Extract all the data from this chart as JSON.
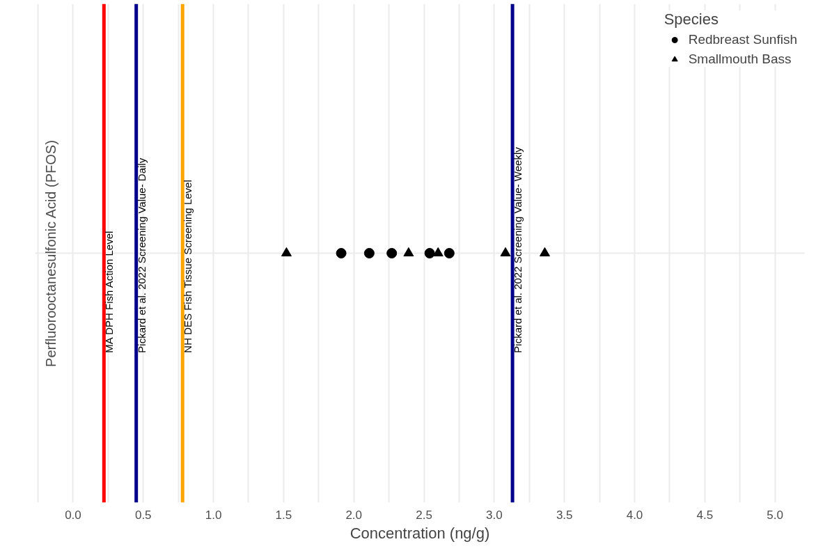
{
  "chart_data": {
    "type": "scatter",
    "orientation": "horizontal",
    "categories": [
      "Perfluorooctanesulfonic Acid (PFOS)"
    ],
    "xlabel": "Concentration (ng/g)",
    "legend_title": "Species",
    "legend": "top right",
    "grid": true,
    "xlim": [
      -0.27,
      5.21
    ],
    "xticks": [
      {
        "value": -0.25,
        "label": null
      },
      {
        "value": 0,
        "label": "0.0"
      },
      {
        "value": 0.25,
        "label": null
      },
      {
        "value": 0.5,
        "label": "0.5"
      },
      {
        "value": 0.75,
        "label": null
      },
      {
        "value": 1,
        "label": "1.0"
      },
      {
        "value": 1.25,
        "label": null
      },
      {
        "value": 1.5,
        "label": "1.5"
      },
      {
        "value": 1.75,
        "label": null
      },
      {
        "value": 2,
        "label": "2.0"
      },
      {
        "value": 2.25,
        "label": null
      },
      {
        "value": 2.5,
        "label": "2.5"
      },
      {
        "value": 2.75,
        "label": null
      },
      {
        "value": 3,
        "label": "3.0"
      },
      {
        "value": 3.25,
        "label": null
      },
      {
        "value": 3.5,
        "label": "3.5"
      },
      {
        "value": 3.75,
        "label": null
      },
      {
        "value": 4,
        "label": "4.0"
      },
      {
        "value": 4.25,
        "label": null
      },
      {
        "value": 4.5,
        "label": "4.5"
      },
      {
        "value": 4.75,
        "label": null
      },
      {
        "value": 5,
        "label": "5.0"
      }
    ],
    "series": [
      {
        "name": "Redbreast Sunfish",
        "color": "#000000",
        "marker": "circle",
        "x": [
          "Perfluorooctanesulfonic Acid (PFOS)",
          "Perfluorooctanesulfonic Acid (PFOS)",
          "Perfluorooctanesulfonic Acid (PFOS)",
          "Perfluorooctanesulfonic Acid (PFOS)",
          "Perfluorooctanesulfonic Acid (PFOS)"
        ],
        "values": [
          1.91,
          2.11,
          2.27,
          2.54,
          2.68
        ]
      },
      {
        "name": "Smallmouth Bass",
        "color": "#000000",
        "marker": "triangle",
        "x": [
          "Perfluorooctanesulfonic Acid (PFOS)",
          "Perfluorooctanesulfonic Acid (PFOS)",
          "Perfluorooctanesulfonic Acid (PFOS)",
          "Perfluorooctanesulfonic Acid (PFOS)",
          "Perfluorooctanesulfonic Acid (PFOS)"
        ],
        "values": [
          1.52,
          2.39,
          2.6,
          3.08,
          3.36
        ]
      }
    ],
    "ref_lines": [
      {
        "axis": "x",
        "value": 0.22,
        "label": "MA DPH Fish Action Level",
        "color": "#ff0000"
      },
      {
        "axis": "x",
        "value": 0.45,
        "label": "Pickard et al. 2022 Screening Value- Daily",
        "color": "#00008b"
      },
      {
        "axis": "x",
        "value": 0.78,
        "label": "NH DES Fish Tissue Screening Level",
        "color": "#ffa500"
      },
      {
        "axis": "x",
        "value": 3.13,
        "label": "Pickard et al. 2022 Screening Value- Weekly",
        "color": "#00008b"
      }
    ]
  }
}
